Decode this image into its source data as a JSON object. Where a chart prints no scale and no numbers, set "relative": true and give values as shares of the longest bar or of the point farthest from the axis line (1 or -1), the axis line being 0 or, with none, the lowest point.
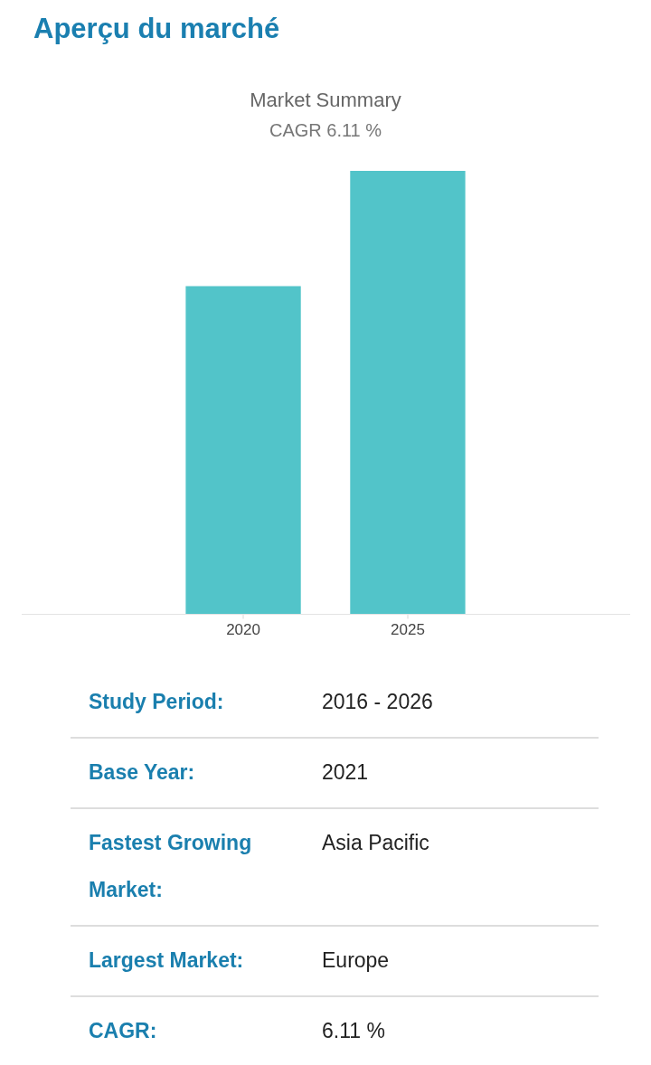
{
  "chart_data": [
    {
      "type": "other",
      "title": "Aperçu du marché"
    },
    {
      "type": "bar",
      "title": "Market Summary",
      "subtitle": "CAGR 6.11 %",
      "categories": [
        "2020",
        "2025"
      ],
      "values": [
        0.74,
        1
      ],
      "color": "#52c4c9",
      "relative": true
    },
    {
      "type": "other",
      "annotations": [
        "Study Period:",
        "2016 - 2026",
        "Base Year:",
        "2021",
        "Fastest Growing Market:",
        "Asia Pacific",
        "Largest Market:",
        "Europe",
        "CAGR:",
        "6.11 %"
      ]
    }
  ]
}
